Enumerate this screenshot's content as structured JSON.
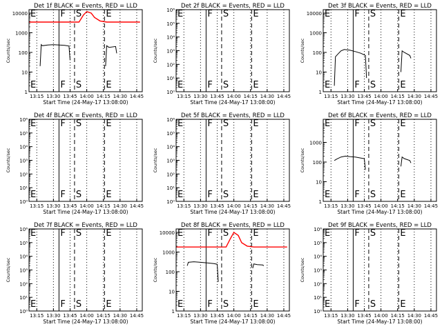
{
  "figure": {
    "colors": {
      "events": "#000000",
      "lld": "#ff0000",
      "background": "#ffffff"
    }
  },
  "chart_data": [
    {
      "id": "det-1f",
      "type": "line",
      "title": "Det 1f BLACK = Events, RED = LLD",
      "ylabel": "Counts/sec",
      "xlabel": "Start Time (24-May-17 13:08:00)",
      "y_scale": "log",
      "ylim": [
        1,
        15000
      ],
      "y_ticks": [
        1,
        10,
        100,
        1000,
        10000
      ],
      "y_tick_labels": [
        "1",
        "10",
        "100",
        "1000",
        "10000"
      ],
      "xlim": [
        "13:08",
        "14:50"
      ],
      "x_ticks": [
        "13:15",
        "13:30",
        "13:45",
        "14:00",
        "14:15",
        "14:30",
        "14:45"
      ],
      "dotted_lines": [
        "13:15",
        "13:30",
        "13:45",
        "14:00",
        "14:15",
        "14:30",
        "14:45"
      ],
      "markers": [
        {
          "label": "E",
          "time": "13:08",
          "style": "none"
        },
        {
          "label": "F",
          "time": "13:35",
          "style": "solid"
        },
        {
          "label": "S",
          "time": "13:49",
          "style": "dashed"
        },
        {
          "label": "E",
          "time": "14:16",
          "style": "dashed"
        }
      ],
      "series": [
        {
          "name": "Events",
          "color": "#000000",
          "segments": [
            [
              [
                "13:18",
                20
              ],
              [
                "13:19",
                250
              ],
              [
                "13:20",
                220
              ],
              [
                "13:25",
                240
              ],
              [
                "13:30",
                250
              ],
              [
                "13:35",
                240
              ],
              [
                "13:40",
                230
              ],
              [
                "13:44",
                210
              ],
              [
                "13:45",
                40
              ]
            ],
            [
              [
                "14:17",
                20
              ],
              [
                "14:18",
                220
              ],
              [
                "14:20",
                180
              ],
              [
                "14:26",
                200
              ],
              [
                "14:27",
                90
              ]
            ]
          ]
        },
        {
          "name": "LLD",
          "color": "#ff0000",
          "segments": [
            [
              [
                "13:08",
                3500
              ],
              [
                "13:53",
                3500
              ],
              [
                "13:57",
                8000
              ],
              [
                "14:00",
                12000
              ],
              [
                "14:04",
                10000
              ],
              [
                "14:07",
                6000
              ],
              [
                "14:12",
                4000
              ],
              [
                "14:18",
                3500
              ],
              [
                "14:48",
                3500
              ]
            ]
          ]
        }
      ]
    },
    {
      "id": "det-2f",
      "type": "line",
      "title": "Det 2f BLACK = Events, RED = LLD",
      "ylabel": "Counts/sec",
      "xlabel": "Start Time (24-May-17 13:08:00)",
      "y_scale": "log",
      "ylim": [
        1,
        1000000
      ],
      "y_ticks": [
        1,
        10,
        100,
        1000,
        10000,
        100000,
        1000000
      ],
      "y_tick_labels": [
        "10⁰",
        "10¹",
        "10²",
        "10³",
        "10⁴",
        "10⁵",
        "10⁶"
      ],
      "xlim": [
        "13:08",
        "14:50"
      ],
      "x_ticks": [
        "13:15",
        "13:30",
        "13:45",
        "14:00",
        "14:15",
        "14:30",
        "14:45"
      ],
      "dotted_lines": [
        "13:15",
        "13:30",
        "13:45",
        "14:00",
        "14:15",
        "14:30",
        "14:45"
      ],
      "markers": [
        {
          "label": "E",
          "time": "13:08",
          "style": "none"
        },
        {
          "label": "F",
          "time": "13:35",
          "style": "solid"
        },
        {
          "label": "S",
          "time": "13:49",
          "style": "dashed"
        },
        {
          "label": "E",
          "time": "14:16",
          "style": "dashed"
        }
      ],
      "series": []
    },
    {
      "id": "det-3f",
      "type": "line",
      "title": "Det 3f BLACK = Events, RED = LLD",
      "ylabel": "Counts/sec",
      "xlabel": "Start Time (24-May-17 13:08:00)",
      "y_scale": "log",
      "ylim": [
        1,
        15000
      ],
      "y_ticks": [
        1,
        10,
        100,
        1000,
        10000
      ],
      "y_tick_labels": [
        "1",
        "10",
        "100",
        "1000",
        "10000"
      ],
      "xlim": [
        "13:08",
        "14:50"
      ],
      "x_ticks": [
        "13:15",
        "13:30",
        "13:45",
        "14:00",
        "14:15",
        "14:30",
        "14:45"
      ],
      "dotted_lines": [
        "13:15",
        "13:30",
        "13:45",
        "14:00",
        "14:15",
        "14:30",
        "14:45"
      ],
      "markers": [
        {
          "label": "E",
          "time": "13:08",
          "style": "none"
        },
        {
          "label": "F",
          "time": "13:35",
          "style": "solid"
        },
        {
          "label": "S",
          "time": "13:49",
          "style": "dashed"
        },
        {
          "label": "E",
          "time": "14:16",
          "style": "dashed"
        }
      ],
      "series": [
        {
          "name": "Events",
          "color": "#000000",
          "segments": [
            [
              [
                "13:18",
                2
              ],
              [
                "13:19",
                60
              ],
              [
                "13:21",
                80
              ],
              [
                "13:24",
                120
              ],
              [
                "13:27",
                140
              ],
              [
                "13:32",
                130
              ],
              [
                "13:37",
                110
              ],
              [
                "13:42",
                90
              ],
              [
                "13:46",
                70
              ],
              [
                "13:47",
                5
              ]
            ],
            [
              [
                "14:18",
                10
              ],
              [
                "14:19",
                120
              ],
              [
                "14:21",
                100
              ],
              [
                "14:26",
                70
              ],
              [
                "14:27",
                50
              ]
            ]
          ]
        }
      ]
    },
    {
      "id": "det-4f",
      "type": "line",
      "title": "Det 4f BLACK = Events, RED = LLD",
      "ylabel": "Counts/sec",
      "xlabel": "Start Time (24-May-17 13:08:00)",
      "y_scale": "log",
      "ylim": [
        1,
        1000000
      ],
      "y_ticks": [
        1,
        10,
        100,
        1000,
        10000,
        100000,
        1000000
      ],
      "y_tick_labels": [
        "10⁰",
        "10¹",
        "10²",
        "10³",
        "10⁴",
        "10⁵",
        "10⁶"
      ],
      "xlim": [
        "13:08",
        "14:50"
      ],
      "x_ticks": [
        "13:15",
        "13:30",
        "13:45",
        "14:00",
        "14:15",
        "14:30",
        "14:45"
      ],
      "dotted_lines": [
        "13:15",
        "13:30",
        "13:45",
        "14:00",
        "14:15",
        "14:30",
        "14:45"
      ],
      "markers": [
        {
          "label": "E",
          "time": "13:08",
          "style": "none"
        },
        {
          "label": "F",
          "time": "13:35",
          "style": "solid"
        },
        {
          "label": "S",
          "time": "13:49",
          "style": "dashed"
        },
        {
          "label": "E",
          "time": "14:16",
          "style": "dashed"
        }
      ],
      "series": []
    },
    {
      "id": "det-5f",
      "type": "line",
      "title": "Det 5f BLACK = Events, RED = LLD",
      "ylabel": "Counts/sec",
      "xlabel": "Start Time (24-May-17 13:08:00)",
      "y_scale": "log",
      "ylim": [
        1,
        1000000
      ],
      "y_ticks": [
        1,
        10,
        100,
        1000,
        10000,
        100000,
        1000000
      ],
      "y_tick_labels": [
        "10⁰",
        "10¹",
        "10²",
        "10³",
        "10⁴",
        "10⁵",
        "10⁶"
      ],
      "xlim": [
        "13:08",
        "14:50"
      ],
      "x_ticks": [
        "13:15",
        "13:30",
        "13:45",
        "14:00",
        "14:15",
        "14:30",
        "14:45"
      ],
      "dotted_lines": [
        "13:15",
        "13:30",
        "13:45",
        "14:00",
        "14:15",
        "14:30",
        "14:45"
      ],
      "markers": [
        {
          "label": "E",
          "time": "13:08",
          "style": "none"
        },
        {
          "label": "F",
          "time": "13:35",
          "style": "solid"
        },
        {
          "label": "S",
          "time": "13:49",
          "style": "dashed"
        },
        {
          "label": "E",
          "time": "14:16",
          "style": "dashed"
        }
      ],
      "series": []
    },
    {
      "id": "det-6f",
      "type": "line",
      "title": "Det 6f BLACK = Events, RED = LLD",
      "ylabel": "Counts/sec",
      "xlabel": "Start Time (24-May-17 13:08:00)",
      "y_scale": "log",
      "ylim": [
        1,
        15000
      ],
      "y_ticks": [
        1,
        10,
        100,
        1000
      ],
      "y_tick_labels": [
        "1",
        "10",
        "100",
        "1000"
      ],
      "xlim": [
        "13:08",
        "14:50"
      ],
      "x_ticks": [
        "13:15",
        "13:30",
        "13:45",
        "14:00",
        "14:15",
        "14:30",
        "14:45"
      ],
      "dotted_lines": [
        "13:15",
        "13:30",
        "13:45",
        "14:00",
        "14:15",
        "14:30",
        "14:45"
      ],
      "markers": [
        {
          "label": "E",
          "time": "13:08",
          "style": "none"
        },
        {
          "label": "F",
          "time": "13:35",
          "style": "solid"
        },
        {
          "label": "S",
          "time": "13:49",
          "style": "dashed"
        },
        {
          "label": "E",
          "time": "14:16",
          "style": "dashed"
        }
      ],
      "series": [
        {
          "name": "Events",
          "color": "#000000",
          "segments": [
            [
              [
                "13:18",
                120
              ],
              [
                "13:20",
                140
              ],
              [
                "13:24",
                180
              ],
              [
                "13:28",
                200
              ],
              [
                "13:32",
                190
              ],
              [
                "13:37",
                180
              ],
              [
                "13:42",
                160
              ],
              [
                "13:45",
                150
              ],
              [
                "13:46",
                40
              ]
            ],
            [
              [
                "14:18",
                60
              ],
              [
                "14:19",
                180
              ],
              [
                "14:21",
                150
              ],
              [
                "14:26",
                120
              ],
              [
                "14:27",
                90
              ]
            ]
          ]
        }
      ]
    },
    {
      "id": "det-7f",
      "type": "line",
      "title": "Det 7f BLACK = Events, RED = LLD",
      "ylabel": "Counts/sec",
      "xlabel": "Start Time (24-May-17 13:08:00)",
      "y_scale": "log",
      "ylim": [
        1,
        1000000
      ],
      "y_ticks": [
        1,
        10,
        100,
        1000,
        10000,
        100000,
        1000000
      ],
      "y_tick_labels": [
        "10⁰",
        "10¹",
        "10²",
        "10³",
        "10⁴",
        "10⁵",
        "10⁶"
      ],
      "xlim": [
        "13:08",
        "14:50"
      ],
      "x_ticks": [
        "13:15",
        "13:30",
        "13:45",
        "14:00",
        "14:15",
        "14:30",
        "14:45"
      ],
      "dotted_lines": [
        "13:15",
        "13:30",
        "13:45",
        "14:00",
        "14:15",
        "14:30",
        "14:45"
      ],
      "markers": [
        {
          "label": "E",
          "time": "13:08",
          "style": "none"
        },
        {
          "label": "F",
          "time": "13:35",
          "style": "solid"
        },
        {
          "label": "S",
          "time": "13:49",
          "style": "dashed"
        },
        {
          "label": "E",
          "time": "14:16",
          "style": "dashed"
        }
      ],
      "series": []
    },
    {
      "id": "det-8f",
      "type": "line",
      "title": "Det 8f BLACK = Events, RED = LLD",
      "ylabel": "Counts/sec",
      "xlabel": "Start Time (24-May-17 13:08:00)",
      "y_scale": "log",
      "ylim": [
        1,
        15000
      ],
      "y_ticks": [
        1,
        10,
        100,
        1000,
        10000
      ],
      "y_tick_labels": [
        "1",
        "10",
        "100",
        "1000",
        "10000"
      ],
      "xlim": [
        "13:08",
        "14:50"
      ],
      "x_ticks": [
        "13:15",
        "13:30",
        "13:45",
        "14:00",
        "14:15",
        "14:30",
        "14:45"
      ],
      "dotted_lines": [
        "13:15",
        "13:30",
        "13:45",
        "14:00",
        "14:15",
        "14:30",
        "14:45"
      ],
      "markers": [
        {
          "label": "E",
          "time": "13:08",
          "style": "none"
        },
        {
          "label": "F",
          "time": "13:35",
          "style": "solid"
        },
        {
          "label": "S",
          "time": "13:49",
          "style": "dashed"
        },
        {
          "label": "E",
          "time": "14:16",
          "style": "dashed"
        }
      ],
      "series": [
        {
          "name": "Events",
          "color": "#000000",
          "segments": [
            [
              [
                "13:18",
                200
              ],
              [
                "13:19",
                300
              ],
              [
                "13:24",
                320
              ],
              [
                "13:30",
                300
              ],
              [
                "13:36",
                280
              ],
              [
                "13:42",
                260
              ],
              [
                "13:45",
                240
              ],
              [
                "13:46",
                30
              ]
            ],
            [
              [
                "14:17",
                150
              ],
              [
                "14:18",
                250
              ],
              [
                "14:21",
                230
              ],
              [
                "14:26",
                220
              ],
              [
                "14:27",
                200
              ]
            ]
          ]
        },
        {
          "name": "LLD",
          "color": "#ff0000",
          "segments": [
            [
              [
                "13:08",
                1800
              ],
              [
                "13:53",
                1800
              ],
              [
                "13:57",
                5000
              ],
              [
                "14:00",
                10000
              ],
              [
                "14:04",
                7000
              ],
              [
                "14:07",
                3000
              ],
              [
                "14:12",
                2000
              ],
              [
                "14:18",
                1800
              ],
              [
                "14:48",
                1800
              ]
            ]
          ]
        }
      ]
    },
    {
      "id": "det-9f",
      "type": "line",
      "title": "Det 9f BLACK = Events, RED = LLD",
      "ylabel": "Counts/sec",
      "xlabel": "Start Time (24-May-17 13:08:00)",
      "y_scale": "log",
      "ylim": [
        1,
        1000000
      ],
      "y_ticks": [
        1,
        10,
        100,
        1000,
        10000,
        100000,
        1000000
      ],
      "y_tick_labels": [
        "10⁰",
        "10¹",
        "10²",
        "10³",
        "10⁴",
        "10⁵",
        "10⁶"
      ],
      "xlim": [
        "13:08",
        "14:50"
      ],
      "x_ticks": [
        "13:15",
        "13:30",
        "13:45",
        "14:00",
        "14:15",
        "14:30",
        "14:45"
      ],
      "dotted_lines": [
        "13:15",
        "13:30",
        "13:45",
        "14:00",
        "14:15",
        "14:30",
        "14:45"
      ],
      "markers": [
        {
          "label": "E",
          "time": "13:08",
          "style": "none"
        },
        {
          "label": "F",
          "time": "13:35",
          "style": "solid"
        },
        {
          "label": "S",
          "time": "13:49",
          "style": "dashed"
        },
        {
          "label": "E",
          "time": "14:16",
          "style": "dashed"
        }
      ],
      "series": []
    }
  ]
}
